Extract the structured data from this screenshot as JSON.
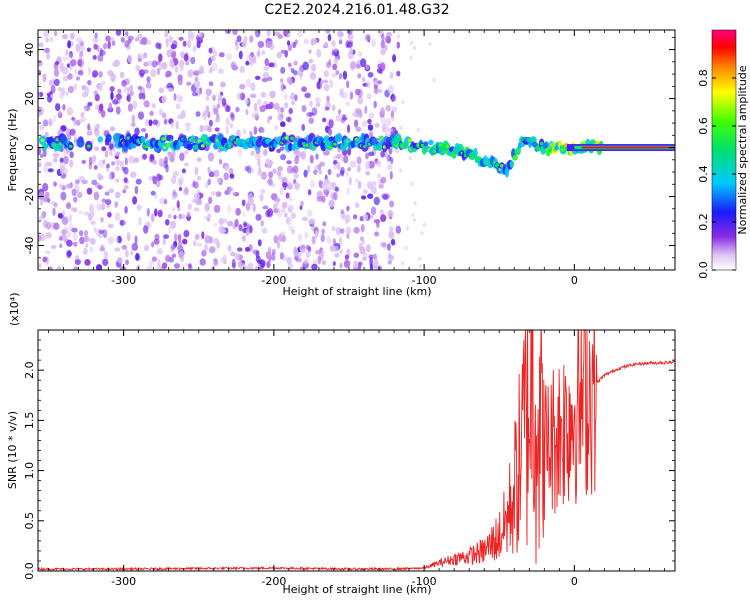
{
  "title": "C2E2.2024.216.01.48.G32",
  "chart_data": [
    {
      "type": "heatmap",
      "xlabel": "Height of straight line (km)",
      "ylabel": "Frequency (Hz)",
      "xlim": [
        -357,
        67
      ],
      "ylim": [
        -50,
        48
      ],
      "xticks": [
        -300,
        -200,
        -100,
        0
      ],
      "yticks": [
        -40,
        -20,
        0,
        20,
        40
      ],
      "xtick_labels": [
        "-300",
        "-200",
        "-100",
        "0"
      ],
      "ytick_labels": [
        "-40",
        "-20",
        "0",
        "20",
        "40"
      ],
      "colorbar": {
        "label": "Normalized spectral amplitude",
        "range": [
          0,
          1
        ],
        "ticks": [
          0.0,
          0.2,
          0.4,
          0.6,
          0.8
        ],
        "tick_labels": [
          "0.0",
          "0.2",
          "0.4",
          "0.6",
          "0.8"
        ],
        "colormap": "rainbow (white-violet-blue-cyan-green-yellow-red-magenta)"
      },
      "noise_region_x": [
        -357,
        -117
      ],
      "ridge": {
        "description_points_x": [
          -350,
          -300,
          -200,
          -120,
          -100,
          -80,
          -60,
          -45,
          -35,
          -20,
          0,
          67
        ],
        "description_points_y": [
          2,
          2,
          2,
          2,
          1,
          -1,
          -5,
          -10,
          3,
          0,
          0,
          0
        ]
      },
      "grid": false
    },
    {
      "type": "line",
      "xlabel": "Height of straight line (km)",
      "ylabel": "SNR (10 * v/v)",
      "y_multiplier_label": "(x10⁴)",
      "xlim": [
        -357,
        67
      ],
      "ylim": [
        0,
        2.4
      ],
      "xticks": [
        -300,
        -200,
        -100,
        0
      ],
      "yticks": [
        0.0,
        0.5,
        1.0,
        1.5,
        2.0
      ],
      "xtick_labels": [
        "-300",
        "-200",
        "-100",
        "0"
      ],
      "ytick_labels": [
        "0.0",
        "0.5",
        "1.0",
        "1.5",
        "2.0"
      ],
      "color": "#ee2222",
      "series": [
        {
          "x": [
            -357,
            -300,
            -200,
            -150,
            -120,
            -100,
            -90,
            -80,
            -70,
            -60,
            -50,
            -45,
            -40,
            -35,
            -30,
            -27,
            -25,
            -20,
            -15,
            -10,
            -5,
            0,
            10,
            20,
            30,
            40,
            50,
            67
          ],
          "y": [
            0.02,
            0.02,
            0.03,
            0.02,
            0.02,
            0.03,
            0.08,
            0.12,
            0.15,
            0.2,
            0.35,
            0.5,
            0.8,
            1.2,
            1.8,
            2.2,
            1.6,
            1.2,
            1.3,
            1.4,
            1.5,
            1.6,
            1.8,
            1.95,
            2.02,
            2.06,
            2.07,
            2.08
          ]
        }
      ],
      "grid": false
    }
  ]
}
